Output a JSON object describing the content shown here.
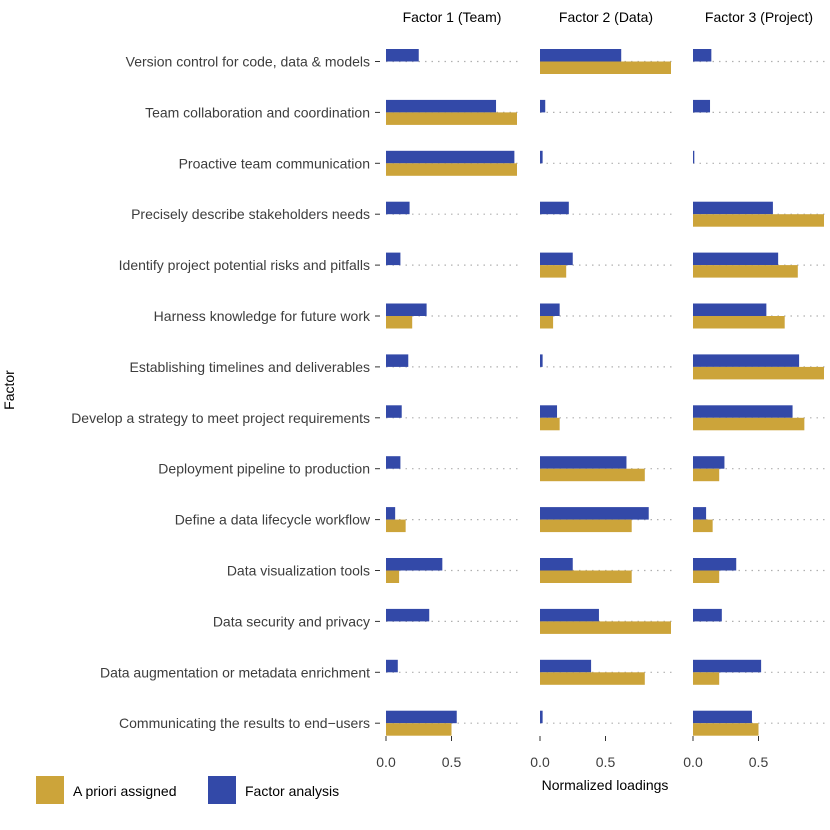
{
  "chart_data": {
    "type": "bar",
    "orientation": "horizontal",
    "layout": "faceted",
    "ylabel": "Factor",
    "xlabel": "Normalized loadings",
    "xlim": [
      0,
      1
    ],
    "xticks": [
      0.0,
      0.5
    ],
    "xtick_labels": [
      "0.0",
      "0.5"
    ],
    "facets": [
      "Factor 1 (Team)",
      "Factor 2 (Data)",
      "Factor 3 (Project)"
    ],
    "categories": [
      "Version control for code, data & models",
      "Team collaboration and coordination",
      "Proactive team communication",
      "Precisely describe stakeholders needs",
      "Identify project potential risks and pitfalls",
      "Harness knowledge for future work",
      "Establishing timelines and deliverables",
      "Develop a strategy to meet project requirements",
      "Deployment pipeline to production",
      "Define a data lifecycle workflow",
      "Data visualization tools",
      "Data security and privacy",
      "Data augmentation or metadata enrichment",
      "Communicating the results to end−users"
    ],
    "series": [
      {
        "name": "Factor analysis",
        "color": "#3349a8",
        "values": [
          [
            0.25,
            0.84,
            0.98,
            0.18,
            0.11,
            0.31,
            0.17,
            0.12,
            0.11,
            0.07,
            0.43,
            0.33,
            0.09,
            0.54
          ],
          [
            0.62,
            0.04,
            0.02,
            0.22,
            0.25,
            0.15,
            0.02,
            0.13,
            0.66,
            0.83,
            0.25,
            0.45,
            0.39,
            0.02
          ],
          [
            0.14,
            0.13,
            0.01,
            0.61,
            0.65,
            0.56,
            0.81,
            0.76,
            0.24,
            0.1,
            0.33,
            0.22,
            0.52,
            0.45
          ]
        ]
      },
      {
        "name": "A priori assigned",
        "color": "#cca43a",
        "values": [
          [
            0.0,
            1.0,
            1.0,
            0.0,
            0.0,
            0.2,
            0.0,
            0.0,
            0.0,
            0.15,
            0.1,
            0.0,
            0.0,
            0.5
          ],
          [
            1.0,
            0.0,
            0.0,
            0.0,
            0.2,
            0.1,
            0.0,
            0.15,
            0.8,
            0.7,
            0.7,
            1.0,
            0.8,
            0.0
          ],
          [
            0.0,
            0.0,
            0.0,
            1.0,
            0.8,
            0.7,
            1.0,
            0.85,
            0.2,
            0.15,
            0.2,
            0.0,
            0.2,
            0.5
          ]
        ]
      }
    ],
    "legend": {
      "position": "bottom-left",
      "entries": [
        "A priori assigned",
        "Factor analysis"
      ]
    },
    "grid": "dotted horizontal guide per category"
  }
}
